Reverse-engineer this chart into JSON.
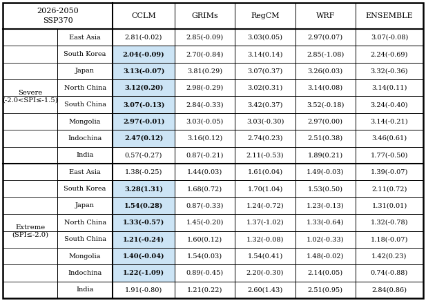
{
  "title_line1": "2026-2050",
  "title_line2": "SSP370",
  "col_headers": [
    "CCLM",
    "GRIMs",
    "RegCM",
    "WRF",
    "ENSEMBLE"
  ],
  "row_group1_label": "Severe\n(-2.0<SPI≤-1.5)",
  "row_group2_label": "Extreme\n(SPI≤-2.0)",
  "row_labels": [
    "East Asia",
    "South Korea",
    "Japan",
    "North China",
    "South China",
    "Mongolia",
    "Indochina",
    "India"
  ],
  "severe_data": [
    [
      "2.81(-0.02)",
      "2.85(-0.09)",
      "3.03(0.05)",
      "2.97(0.07)",
      "3.07(-0.08)"
    ],
    [
      "2.04(-0.09)",
      "2.70(-0.84)",
      "3.14(0.14)",
      "2.85(-1.08)",
      "2.24(-0.69)"
    ],
    [
      "3.13(-0.07)",
      "3.81(0.29)",
      "3.07(0.37)",
      "3.26(0.03)",
      "3.32(-0.36)"
    ],
    [
      "3.12(0.20)",
      "2.98(-0.29)",
      "3.02(0.31)",
      "3.14(0.08)",
      "3.14(0.11)"
    ],
    [
      "3.07(-0.13)",
      "2.84(-0.33)",
      "3.42(0.37)",
      "3.52(-0.18)",
      "3.24(-0.40)"
    ],
    [
      "2.97(-0.01)",
      "3.03(-0.05)",
      "3.03(-0.30)",
      "2.97(0.00)",
      "3.14(-0.21)"
    ],
    [
      "2.47(0.12)",
      "3.16(0.12)",
      "2.74(0.23)",
      "2.51(0.38)",
      "3.46(0.61)"
    ],
    [
      "0.57(-0.27)",
      "0.87(-0.21)",
      "2.11(-0.53)",
      "1.89(0.21)",
      "1.77(-0.50)"
    ]
  ],
  "extreme_data": [
    [
      "1.38(-0.25)",
      "1.44(0.03)",
      "1.61(0.04)",
      "1.49(-0.03)",
      "1.39(-0.07)"
    ],
    [
      "3.28(1.31)",
      "1.68(0.72)",
      "1.70(1.04)",
      "1.53(0.50)",
      "2.11(0.72)"
    ],
    [
      "1.54(0.28)",
      "0.87(-0.33)",
      "1.24(-0.72)",
      "1.23(-0.13)",
      "1.31(0.01)"
    ],
    [
      "1.33(-0.57)",
      "1.45(-0.20)",
      "1.37(-1.02)",
      "1.33(-0.64)",
      "1.32(-0.78)"
    ],
    [
      "1.21(-0.24)",
      "1.60(0.12)",
      "1.32(-0.08)",
      "1.02(-0.33)",
      "1.18(-0.07)"
    ],
    [
      "1.40(-0.04)",
      "1.54(0.03)",
      "1.54(0.41)",
      "1.48(-0.02)",
      "1.42(0.23)"
    ],
    [
      "1.22(-1.09)",
      "0.89(-0.45)",
      "2.20(-0.30)",
      "2.14(0.05)",
      "0.74(-0.88)"
    ],
    [
      "1.91(-0.80)",
      "1.21(0.22)",
      "2.60(1.43)",
      "2.51(0.95)",
      "2.84(0.86)"
    ]
  ],
  "severe_bold": [
    [
      false,
      false,
      false,
      false,
      false
    ],
    [
      true,
      false,
      false,
      false,
      false
    ],
    [
      true,
      false,
      false,
      false,
      false
    ],
    [
      true,
      false,
      false,
      false,
      false
    ],
    [
      true,
      false,
      false,
      false,
      false
    ],
    [
      true,
      false,
      false,
      false,
      false
    ],
    [
      true,
      false,
      false,
      false,
      false
    ],
    [
      false,
      false,
      false,
      false,
      false
    ]
  ],
  "extreme_bold": [
    [
      false,
      false,
      false,
      false,
      false
    ],
    [
      true,
      false,
      false,
      false,
      false
    ],
    [
      true,
      false,
      false,
      false,
      false
    ],
    [
      true,
      false,
      false,
      false,
      false
    ],
    [
      true,
      false,
      false,
      false,
      false
    ],
    [
      true,
      false,
      false,
      false,
      false
    ],
    [
      true,
      false,
      false,
      false,
      false
    ],
    [
      false,
      false,
      false,
      false,
      false
    ]
  ],
  "highlight_color": "#cce4f5",
  "font_size": 7.0,
  "header_font_size": 8.0,
  "group_font_size": 7.2
}
